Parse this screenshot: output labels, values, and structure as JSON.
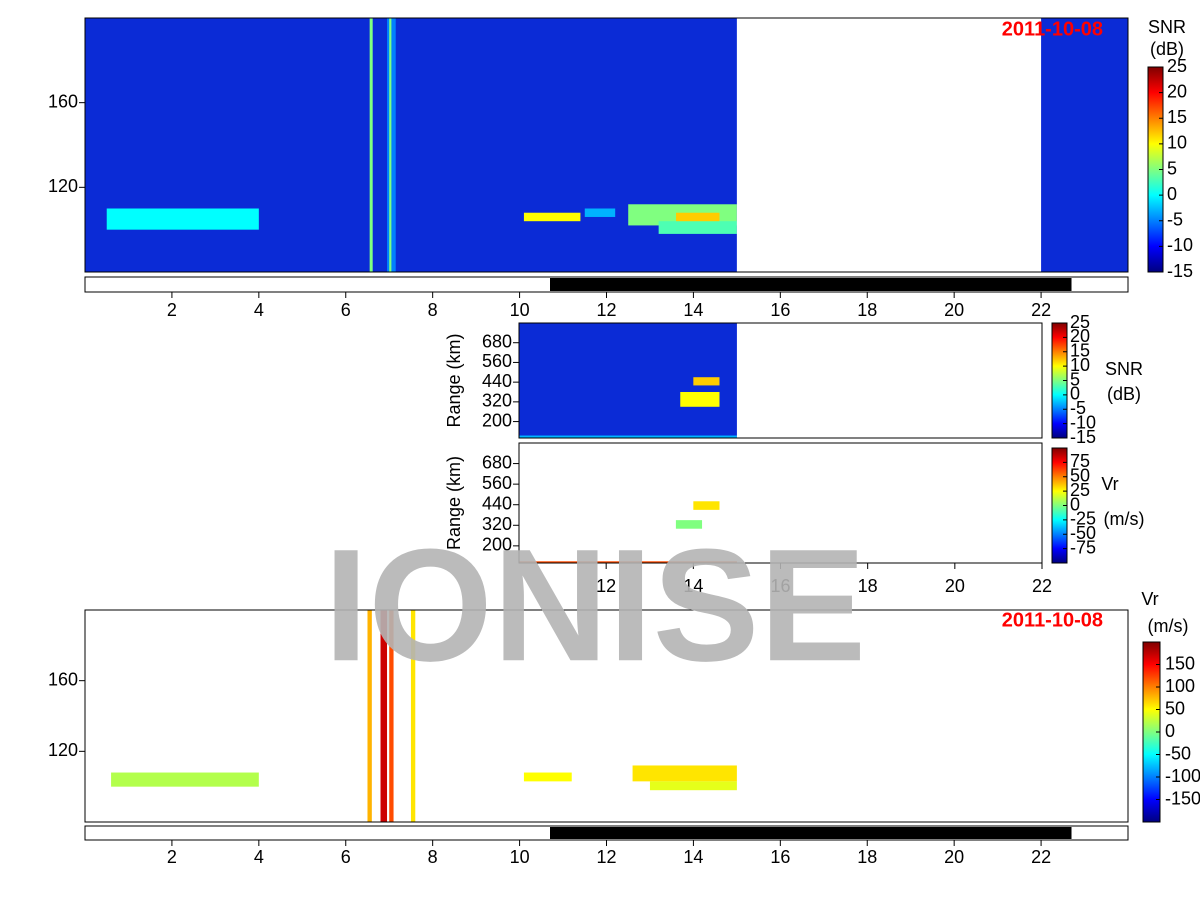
{
  "chart_data": [
    {
      "type": "heatmap",
      "title": "2011-10-08",
      "colormap": "jet",
      "background": "#0b2bd6",
      "xlim": [
        0,
        24
      ],
      "ylim": [
        80,
        200
      ],
      "xticks": [
        2,
        4,
        6,
        8,
        10,
        12,
        14,
        16,
        18,
        20,
        22
      ],
      "yticks": [
        120,
        160
      ],
      "night": [
        10.7,
        22.7
      ],
      "gaps": [
        [
          15,
          22
        ]
      ],
      "patches": [
        {
          "x": [
            0.5,
            4.0
          ],
          "y": [
            100,
            110
          ],
          "value": 0
        },
        {
          "x": [
            6.55,
            6.62
          ],
          "y": [
            80,
            200
          ],
          "value": 5
        },
        {
          "x": [
            6.95,
            7.15
          ],
          "y": [
            80,
            200
          ],
          "value": -5
        },
        {
          "x": [
            7.0,
            7.05
          ],
          "y": [
            80,
            200
          ],
          "value": 5
        },
        {
          "x": [
            10.1,
            11.4
          ],
          "y": [
            104,
            108
          ],
          "value": 10
        },
        {
          "x": [
            11.5,
            12.2
          ],
          "y": [
            106,
            110
          ],
          "value": -3
        },
        {
          "x": [
            12.5,
            15.0
          ],
          "y": [
            102,
            112
          ],
          "value": 5
        },
        {
          "x": [
            13.2,
            15.0
          ],
          "y": [
            98,
            104
          ],
          "value": 3
        },
        {
          "x": [
            13.6,
            14.6
          ],
          "y": [
            104,
            108
          ],
          "value": 12
        }
      ],
      "colorbar": {
        "label": [
          "SNR",
          "(dB)"
        ],
        "lim": [
          -15,
          25
        ],
        "ticks": [
          25,
          20,
          15,
          10,
          5,
          0,
          -5,
          -10,
          -15
        ]
      }
    },
    {
      "type": "heatmap",
      "colormap": "jet",
      "background": "#0b2bd6",
      "xlim": [
        10,
        22
      ],
      "ylim": [
        100,
        800
      ],
      "yticks": [
        200,
        320,
        440,
        560,
        680
      ],
      "ylabel": "Range (km)",
      "gaps": [
        [
          15,
          22
        ]
      ],
      "patches": [
        {
          "x": [
            13.7,
            14.6
          ],
          "y": [
            290,
            380
          ],
          "value": 10
        },
        {
          "x": [
            14.0,
            14.6
          ],
          "y": [
            420,
            470
          ],
          "value": 12
        },
        {
          "x": [
            10.0,
            15.0
          ],
          "y": [
            100,
            115
          ],
          "value": -3
        }
      ],
      "colorbar": {
        "label": [
          "SNR",
          "(dB)"
        ],
        "lim": [
          -15,
          25
        ],
        "ticks": [
          25,
          20,
          15,
          10,
          5,
          0,
          -5,
          -10,
          -15
        ]
      }
    },
    {
      "type": "heatmap",
      "colormap": "jet",
      "background": "#ffffff",
      "xlim": [
        10,
        22
      ],
      "ylim": [
        100,
        800
      ],
      "xticks": [
        12,
        14,
        16,
        18,
        20,
        22
      ],
      "yticks": [
        200,
        320,
        440,
        560,
        680
      ],
      "ylabel": "Range (km)",
      "patches": [
        {
          "x": [
            13.6,
            14.2
          ],
          "y": [
            300,
            350
          ],
          "value": 0
        },
        {
          "x": [
            14.0,
            14.6
          ],
          "y": [
            410,
            460
          ],
          "value": 30
        },
        {
          "x": [
            10.0,
            15.0
          ],
          "y": [
            100,
            110
          ],
          "value": 60
        }
      ],
      "colorbar": {
        "label": [
          "Vr",
          "(m/s)"
        ],
        "lim": [
          -100,
          100
        ],
        "ticks": [
          75,
          50,
          25,
          0,
          -25,
          -50,
          -75
        ]
      }
    },
    {
      "type": "heatmap",
      "title": "2011-10-08",
      "colormap": "jet",
      "background": "#ffffff",
      "xlim": [
        0,
        24
      ],
      "ylim": [
        80,
        200
      ],
      "xticks": [
        2,
        4,
        6,
        8,
        10,
        12,
        14,
        16,
        18,
        20,
        22
      ],
      "yticks": [
        120,
        160
      ],
      "night": [
        10.7,
        22.7
      ],
      "patches": [
        {
          "x": [
            0.6,
            4.0
          ],
          "y": [
            100,
            108
          ],
          "value": 20
        },
        {
          "x": [
            6.5,
            6.6
          ],
          "y": [
            80,
            200
          ],
          "value": 80
        },
        {
          "x": [
            6.8,
            6.95
          ],
          "y": [
            80,
            200
          ],
          "value": 170
        },
        {
          "x": [
            7.0,
            7.1
          ],
          "y": [
            80,
            200
          ],
          "value": 120
        },
        {
          "x": [
            7.5,
            7.6
          ],
          "y": [
            80,
            200
          ],
          "value": 60
        },
        {
          "x": [
            10.1,
            11.2
          ],
          "y": [
            103,
            108
          ],
          "value": 50
        },
        {
          "x": [
            12.6,
            15.0
          ],
          "y": [
            103,
            112
          ],
          "value": 60
        },
        {
          "x": [
            13.0,
            15.0
          ],
          "y": [
            98,
            103
          ],
          "value": 40
        }
      ],
      "colorbar": {
        "label": [
          "Vr",
          "(m/s)"
        ],
        "lim": [
          -200,
          200
        ],
        "ticks": [
          150,
          100,
          50,
          0,
          -50,
          -100,
          -150
        ]
      }
    }
  ],
  "watermark": "IONISE"
}
